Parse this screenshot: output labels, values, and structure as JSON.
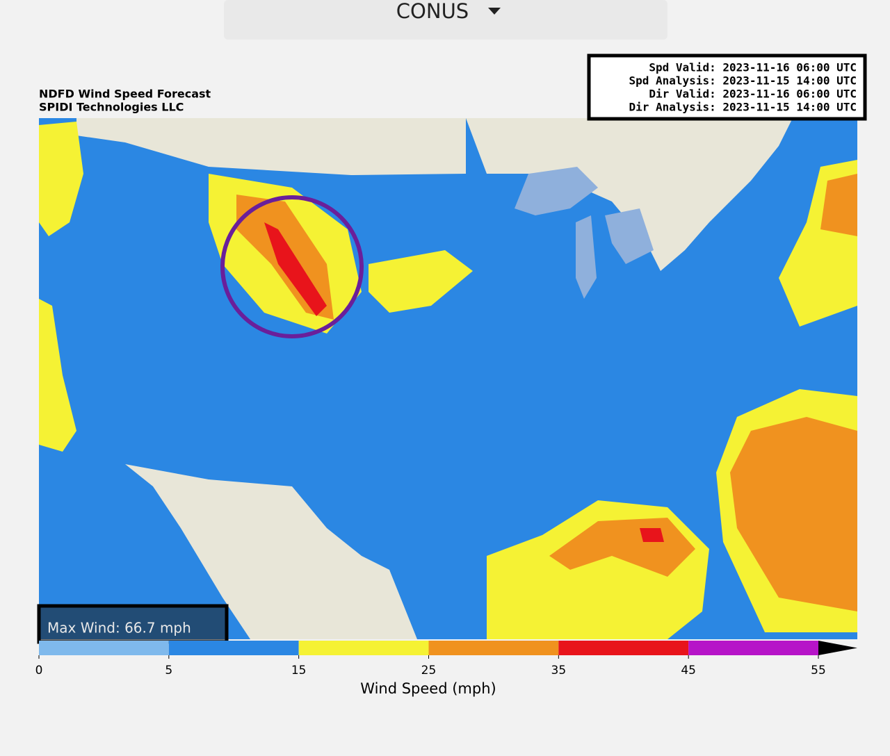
{
  "header": {
    "region": "CONUS"
  },
  "map": {
    "title": "NDFD Wind Speed Forecast",
    "subtitle": "SPIDI Technologies LLC",
    "info": [
      "Spd Valid: 2023-11-16 06:00 UTC",
      "Spd Analysis: 2023-11-15 14:00 UTC",
      "Dir Valid: 2023-11-16 06:00 UTC",
      "Dir Analysis: 2023-11-15 14:00 UTC"
    ],
    "max_wind": "Max Wind: 66.7 mph"
  },
  "colorbar": {
    "label": "Wind Speed (mph)",
    "bounds": [
      0,
      5,
      15,
      25,
      35,
      45,
      55
    ],
    "colors": [
      "#7fb9ec",
      "#2b87e3",
      "#f5f234",
      "#f0921f",
      "#e8141b",
      "#b614c8"
    ],
    "extend_color": "#000000"
  }
}
